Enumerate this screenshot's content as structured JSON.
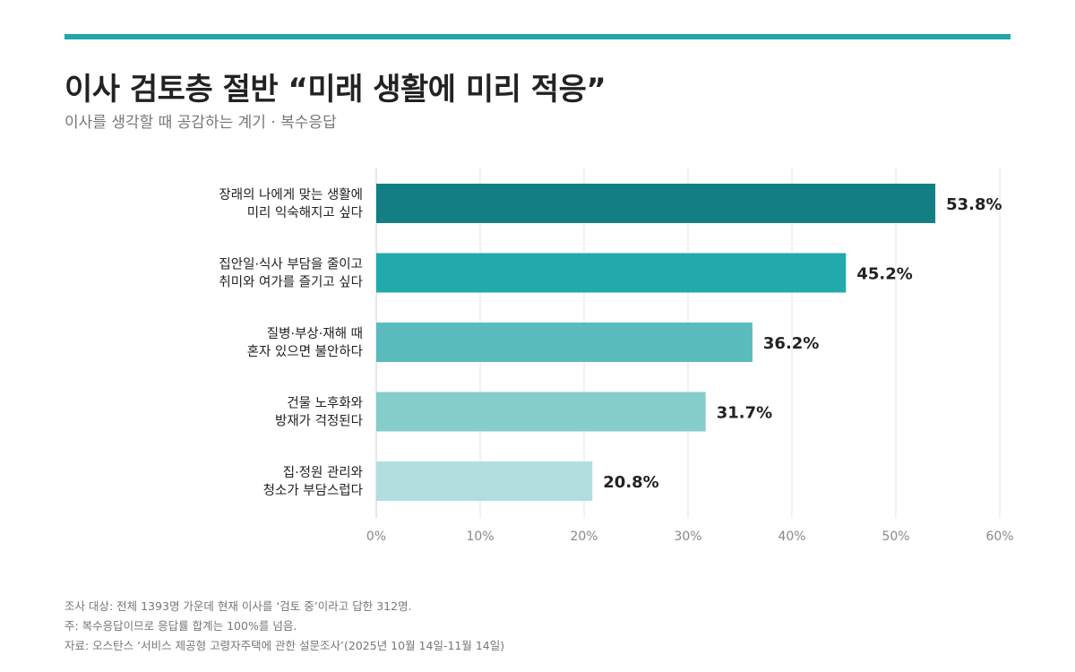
{
  "header": {
    "title": "이사 검토층 절반 “미래 생활에 미리 적응”",
    "subtitle": "이사를 생각할 때 공감하는 계기 · 복수응답"
  },
  "colors": {
    "accent": "#22a6a8",
    "bars": [
      "#137f85",
      "#22a9ab",
      "#5abbbc",
      "#84cdcb",
      "#b1dede"
    ],
    "grid": "#e6e6e6",
    "tick_text": "#888888"
  },
  "chart_data": {
    "type": "bar",
    "orientation": "horizontal",
    "categories": [
      [
        "장래의 나에게 맞는 생활에",
        "미리 익숙해지고 싶다"
      ],
      [
        "집안일·식사 부담을 줄이고",
        "취미와 여가를 즐기고 싶다"
      ],
      [
        "질병·부상·재해 때",
        "혼자 있으면 불안하다"
      ],
      [
        "건물 노후화와",
        "방재가 걱정된다"
      ],
      [
        "집·정원 관리와",
        "청소가 부담스럽다"
      ]
    ],
    "values": [
      53.8,
      45.2,
      36.2,
      31.7,
      20.8
    ],
    "value_labels": [
      "53.8%",
      "45.2%",
      "36.2%",
      "31.7%",
      "20.8%"
    ],
    "xlim": [
      0,
      60
    ],
    "xticks": [
      0,
      10,
      20,
      30,
      40,
      50,
      60
    ],
    "xtick_labels": [
      "0%",
      "10%",
      "20%",
      "30%",
      "40%",
      "50%",
      "60%"
    ],
    "grid": true
  },
  "notes": [
    "조사 대상: 전체 1393명 가운데 현재 이사를 ‘검토 중’이라고 답한 312명.",
    "주: 복수응답이므로 응답률 합계는 100%를 넘음.",
    "자료: 오스탄스 ‘서비스 제공형 고령자주택에 관한 설문조사’(2025년 10월 14일-11월 14일)"
  ]
}
